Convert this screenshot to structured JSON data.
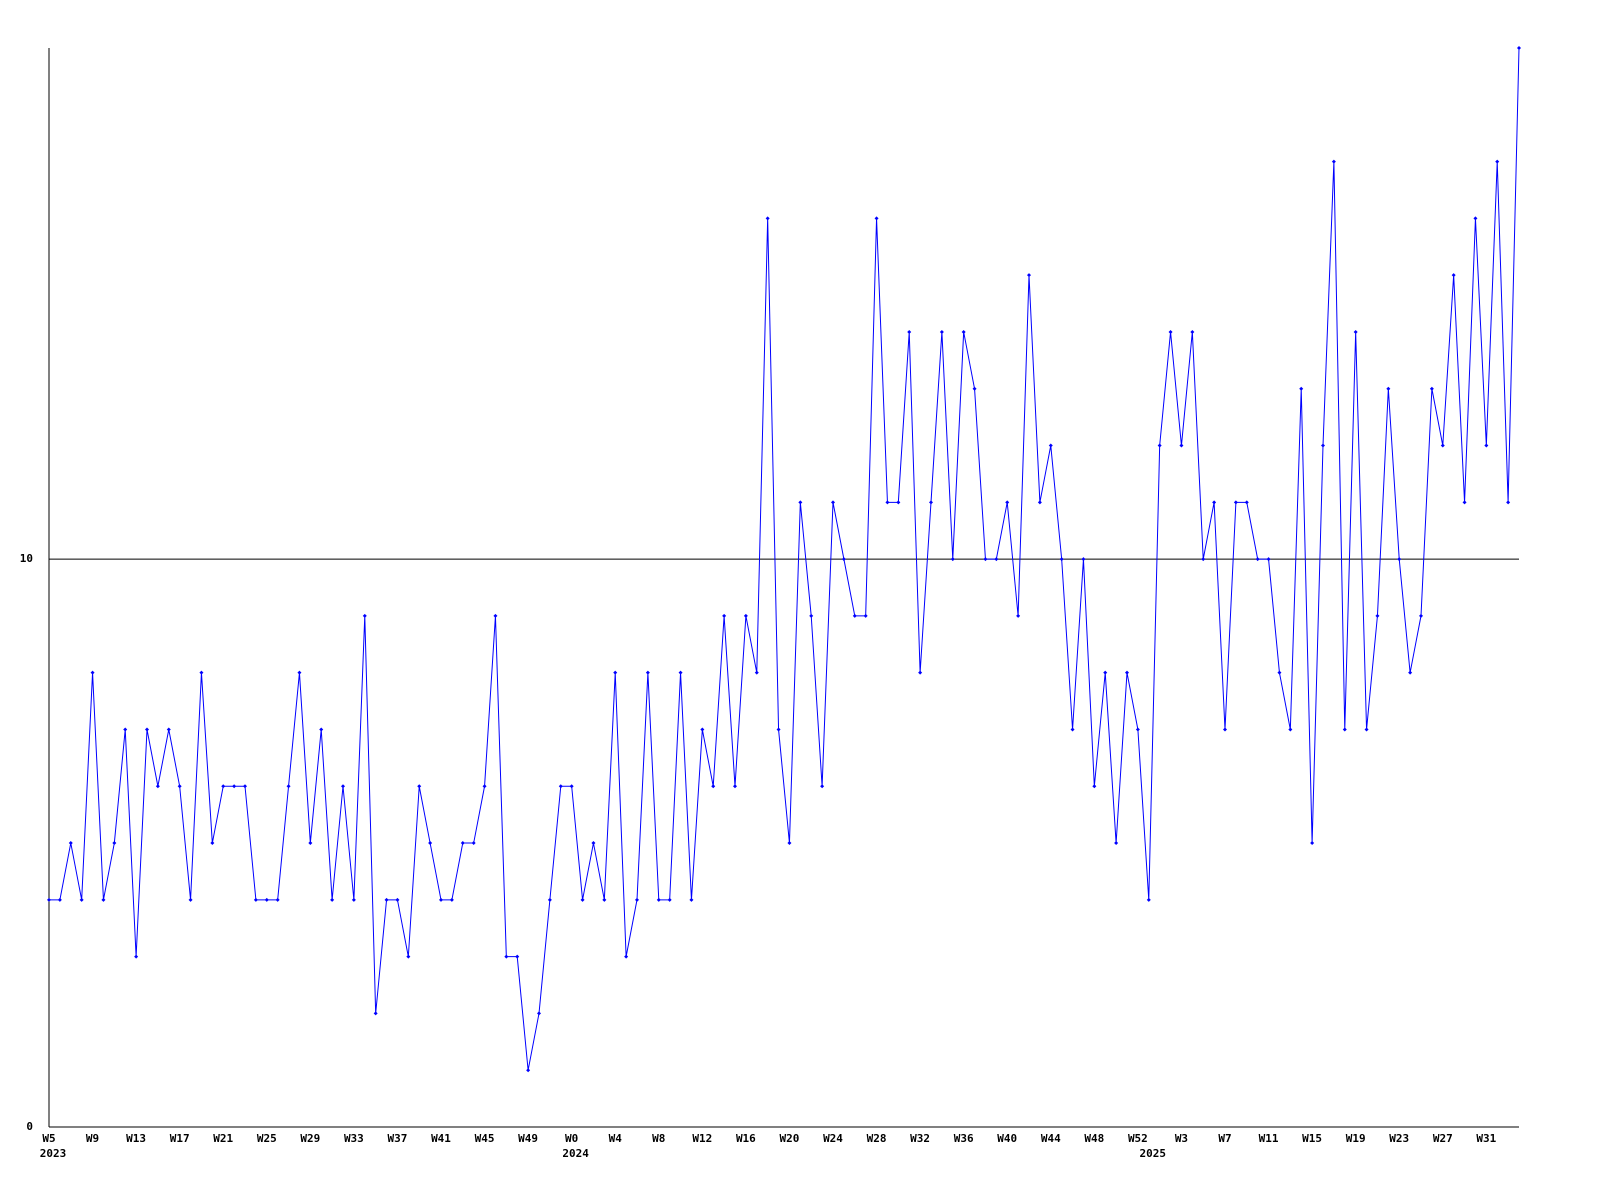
{
  "chart_data": {
    "type": "line",
    "categories": [
      "W5",
      null,
      null,
      null,
      "W9",
      null,
      null,
      null,
      "W13",
      null,
      null,
      null,
      "W17",
      null,
      null,
      null,
      "W21",
      null,
      null,
      null,
      "W25",
      null,
      null,
      null,
      "W29",
      null,
      null,
      null,
      "W33",
      null,
      null,
      null,
      "W37",
      null,
      null,
      null,
      "W41",
      null,
      null,
      null,
      "W45",
      null,
      null,
      null,
      "W49",
      null,
      null,
      null,
      "W0",
      null,
      null,
      null,
      "W4",
      null,
      null,
      null,
      "W8",
      null,
      null,
      null,
      "W12",
      null,
      null,
      null,
      "W16",
      null,
      null,
      null,
      "W20",
      null,
      null,
      null,
      "W24",
      null,
      null,
      null,
      "W28",
      null,
      null,
      null,
      "W32",
      null,
      null,
      null,
      "W36",
      null,
      null,
      null,
      "W40",
      null,
      null,
      null,
      "W44",
      null,
      null,
      null,
      "W48",
      null,
      null,
      null,
      "W52",
      null,
      null,
      null,
      "W3",
      null,
      null,
      null,
      "W7",
      null,
      null,
      null,
      "W11",
      null,
      null,
      null,
      "W15",
      null,
      null,
      null,
      "W19",
      null,
      null,
      null,
      "W23",
      null,
      null,
      null,
      "W27",
      null,
      null,
      null,
      "W31",
      null,
      null,
      null
    ],
    "x_groups": [
      {
        "label": "2023",
        "start": 0
      },
      {
        "label": "2024",
        "start": 48
      },
      {
        "label": "2025",
        "start": 101
      }
    ],
    "series": [
      {
        "color": "#0000ff",
        "values": [
          4,
          4,
          5,
          4,
          8,
          4,
          5,
          7,
          3,
          7,
          6,
          7,
          6,
          4,
          8,
          5,
          6,
          6,
          6,
          4,
          4,
          4,
          6,
          8,
          5,
          7,
          4,
          6,
          4,
          9,
          2,
          4,
          4,
          3,
          6,
          5,
          4,
          4,
          5,
          5,
          6,
          9,
          3,
          3,
          1,
          2,
          4,
          6,
          6,
          4,
          5,
          4,
          8,
          3,
          4,
          8,
          4,
          4,
          8,
          4,
          7,
          6,
          9,
          6,
          9,
          8,
          16,
          7,
          5,
          11,
          9,
          6,
          11,
          10,
          9,
          9,
          16,
          11,
          11,
          14,
          8,
          11,
          14,
          10,
          14,
          13,
          10,
          10,
          11,
          9,
          15,
          11,
          12,
          10,
          7,
          10,
          6,
          8,
          5,
          8,
          7,
          4,
          12,
          14,
          12,
          14,
          10,
          11,
          7,
          11,
          11,
          10,
          10,
          8,
          7,
          13,
          5,
          12,
          17,
          7,
          14,
          7,
          9,
          13,
          10,
          8,
          9,
          13,
          12,
          15,
          11,
          16,
          12,
          17,
          11,
          19
        ]
      }
    ],
    "ylim": [
      0,
      19
    ],
    "yticks": [
      0,
      10
    ],
    "grid": true
  }
}
